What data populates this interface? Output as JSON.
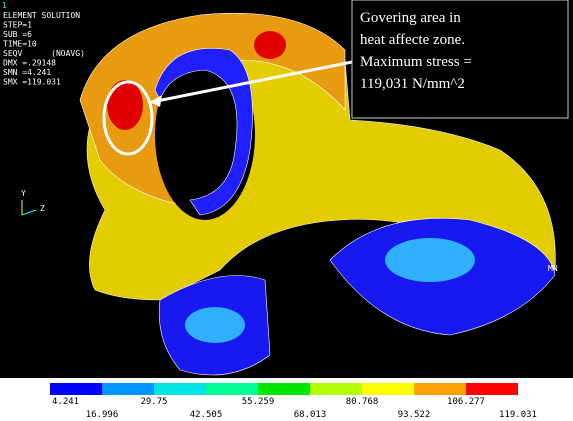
{
  "header": {
    "window_number": "1",
    "lines": [
      "ELEMENT SOLUTION",
      "STEP=1",
      "SUB =6",
      "TIME=10",
      "SEQV      (NOAVG)",
      "DMX =.29148",
      "SMN =4.241",
      "SMX =119.031"
    ]
  },
  "annotation": {
    "lines": [
      "Govering area in",
      "heat affecte zone.",
      "Maximum stress =",
      "119,031 N/mm^2"
    ]
  },
  "triad": {
    "y_label": "Y",
    "z_label": "Z"
  },
  "min_label": "MN",
  "legend": {
    "colors": [
      "#0000ff",
      "#0096ff",
      "#00e6e6",
      "#00ff96",
      "#00e600",
      "#b4ff00",
      "#ffff00",
      "#ffa000",
      "#ff0000"
    ],
    "labels": [
      "4.241",
      "16.996",
      "29.75",
      "42.505",
      "55.259",
      "68.013",
      "80.768",
      "93.522",
      "106.277",
      "119.031"
    ]
  }
}
